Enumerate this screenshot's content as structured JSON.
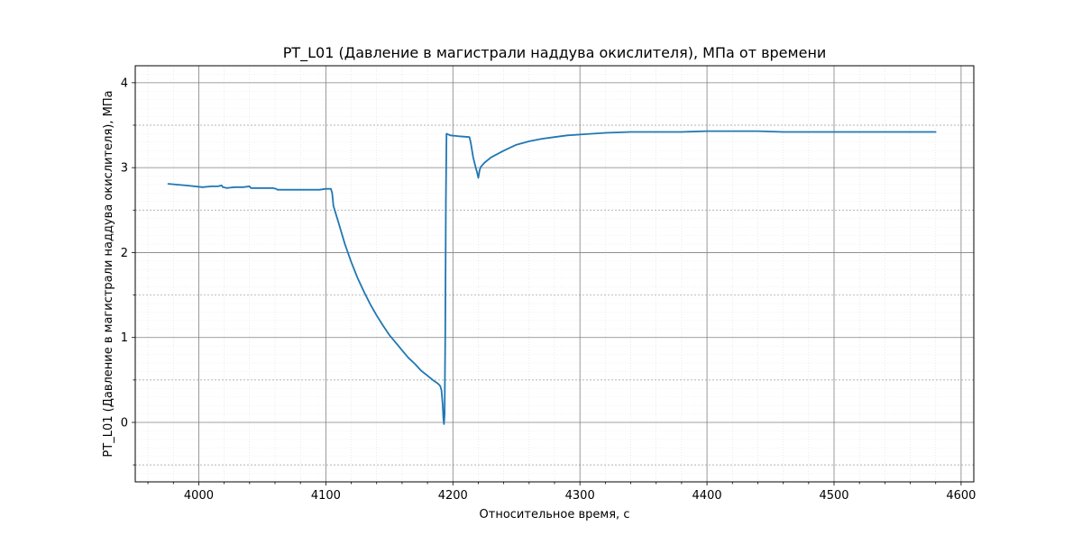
{
  "chart_data": {
    "type": "line",
    "title": "PT_L01 (Давление в магистрали наддува окислителя), МПа от времени",
    "xlabel": "Относительное время, с",
    "ylabel": "PT_L01 (Давление в магистрали наддува окислителя), МПа",
    "xlim": [
      3950,
      4610
    ],
    "ylim": [
      -0.7,
      4.2
    ],
    "x_ticks": [
      4000,
      4100,
      4200,
      4300,
      4400,
      4500,
      4600
    ],
    "y_ticks": [
      0,
      1,
      2,
      3,
      4
    ],
    "y_minor_dashed": [
      -0.5,
      0.5,
      1.5,
      2.5,
      3.5
    ],
    "grid": true,
    "legend": "none",
    "series": [
      {
        "color": "#1f77b4",
        "x": [
          3976,
          3990,
          4003,
          4010,
          4015,
          4018,
          4019,
          4022,
          4028,
          4035,
          4040,
          4041,
          4045,
          4053,
          4058,
          4061,
          4062,
          4066,
          4075,
          4085,
          4095,
          4100,
          4104,
          4105,
          4106,
          4110,
          4115,
          4120,
          4125,
          4130,
          4135,
          4140,
          4145,
          4150,
          4155,
          4160,
          4165,
          4170,
          4175,
          4180,
          4185,
          4188,
          4190,
          4191,
          4192,
          4192.5,
          4193,
          4193.5,
          4194,
          4194.5,
          4195,
          4198,
          4205,
          4213,
          4214,
          4216,
          4218,
          4219,
          4220,
          4221,
          4222,
          4225,
          4230,
          4240,
          4250,
          4260,
          4270,
          4280,
          4290,
          4300,
          4320,
          4340,
          4360,
          4380,
          4400,
          4420,
          4440,
          4460,
          4480,
          4500,
          4520,
          4540,
          4560,
          4580
        ],
        "y": [
          2.81,
          2.79,
          2.77,
          2.78,
          2.78,
          2.79,
          2.77,
          2.76,
          2.77,
          2.77,
          2.78,
          2.76,
          2.76,
          2.76,
          2.76,
          2.75,
          2.74,
          2.74,
          2.74,
          2.74,
          2.74,
          2.75,
          2.75,
          2.7,
          2.55,
          2.35,
          2.1,
          1.89,
          1.7,
          1.54,
          1.39,
          1.26,
          1.14,
          1.03,
          0.94,
          0.85,
          0.76,
          0.69,
          0.61,
          0.55,
          0.49,
          0.46,
          0.43,
          0.38,
          0.2,
          0.05,
          -0.02,
          0.1,
          1.0,
          2.6,
          3.4,
          3.38,
          3.37,
          3.36,
          3.3,
          3.12,
          3.0,
          2.95,
          2.88,
          2.97,
          3.01,
          3.06,
          3.12,
          3.2,
          3.27,
          3.31,
          3.34,
          3.36,
          3.38,
          3.39,
          3.41,
          3.42,
          3.42,
          3.42,
          3.43,
          3.43,
          3.43,
          3.42,
          3.42,
          3.42,
          3.42,
          3.42,
          3.42,
          3.42
        ]
      }
    ]
  }
}
